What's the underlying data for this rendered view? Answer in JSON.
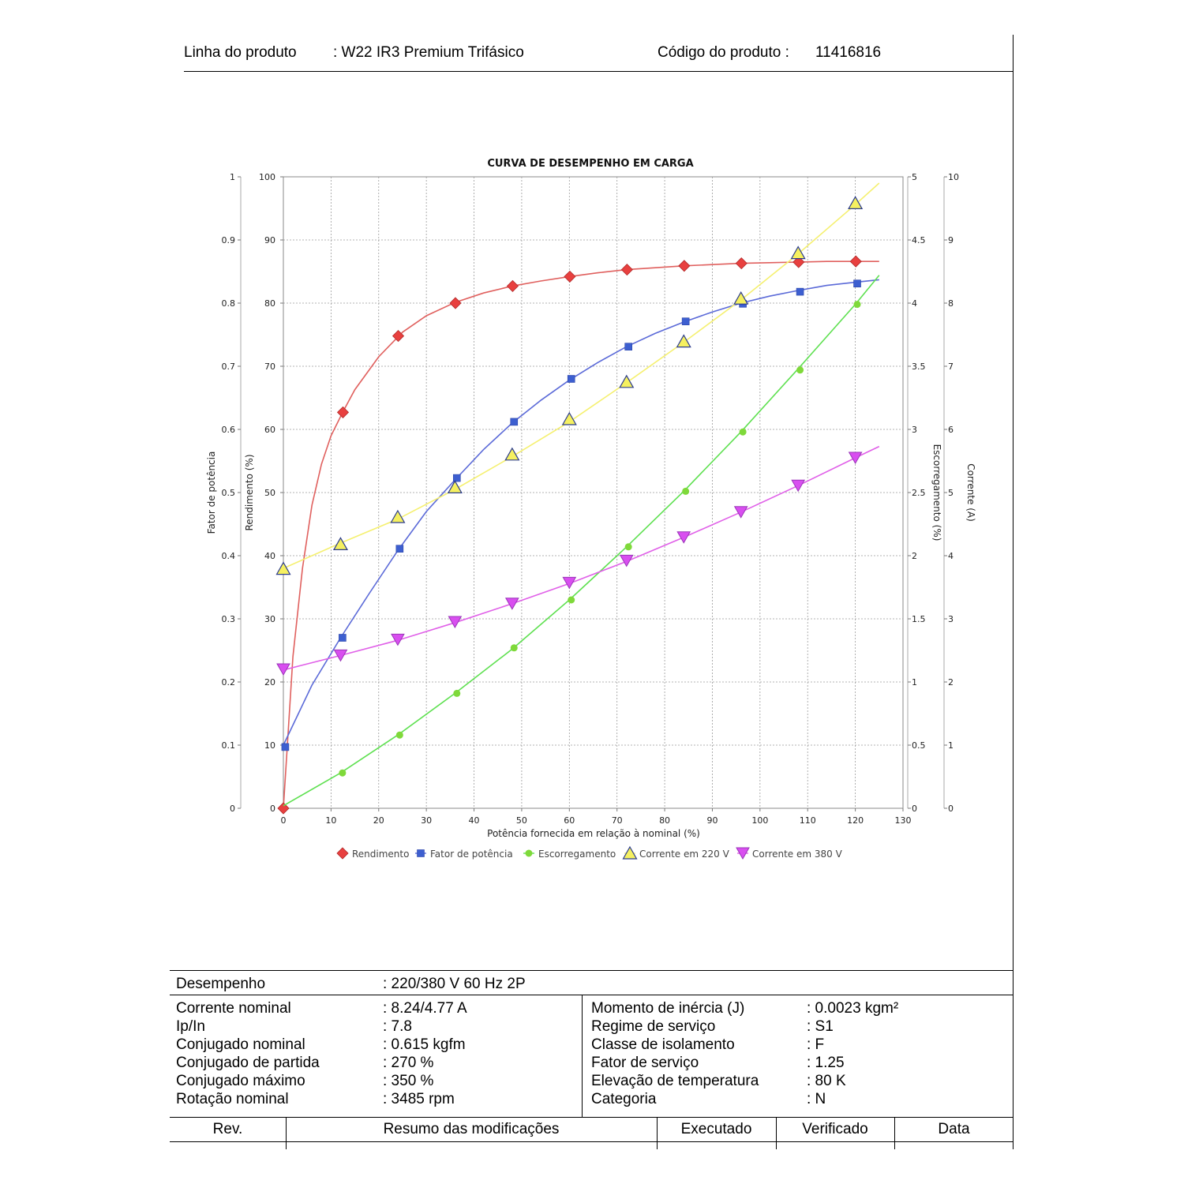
{
  "header": {
    "linha_label": "Linha do produto",
    "linha_value": ": W22 IR3 Premium Trifásico",
    "codigo_label": "Código do produto :",
    "codigo_value": "11416816"
  },
  "chart_data": {
    "type": "line",
    "title": "CURVA DE DESEMPENHO EM CARGA",
    "xlabel": "Potência fornecida em relação à nominal (%)",
    "xlim": [
      0,
      130
    ],
    "x_ticks": [
      0,
      10,
      20,
      30,
      40,
      50,
      60,
      70,
      80,
      90,
      100,
      110,
      120,
      130
    ],
    "grid": true,
    "legend_position": "bottom",
    "axes": [
      {
        "id": "pf",
        "label": "Fator de potência",
        "side": "left-outer",
        "range": [
          0,
          1
        ],
        "ticks": [
          "0",
          "0.1",
          "0.2",
          "0.3",
          "0.4",
          "0.5",
          "0.6",
          "0.7",
          "0.8",
          "0.9",
          "1"
        ]
      },
      {
        "id": "eff",
        "label": "Rendimento (%)",
        "side": "left-inner",
        "range": [
          0,
          100
        ],
        "ticks": [
          "0",
          "10",
          "20",
          "30",
          "40",
          "50",
          "60",
          "70",
          "80",
          "90",
          "100"
        ]
      },
      {
        "id": "slip",
        "label": "Escorregamento (%)",
        "side": "right-inner",
        "range": [
          0,
          5
        ],
        "ticks": [
          "0",
          "0.5",
          "1",
          "1.5",
          "2",
          "2.5",
          "3",
          "3.5",
          "4",
          "4.5",
          "5"
        ]
      },
      {
        "id": "cur",
        "label": "Corrente (A)",
        "side": "right-outer",
        "range": [
          0,
          10
        ],
        "ticks": [
          "0",
          "1",
          "2",
          "3",
          "4",
          "5",
          "6",
          "7",
          "8",
          "9",
          "10"
        ]
      }
    ],
    "series": [
      {
        "name": "Rendimento",
        "axis": "eff",
        "color": "#e8403f",
        "line_color": "#e0605e",
        "marker": "diamond",
        "points": [
          [
            0,
            0
          ],
          [
            12.5,
            62.7
          ],
          [
            24.1,
            74.8
          ],
          [
            36.1,
            80.0
          ],
          [
            48.1,
            82.7
          ],
          [
            60.1,
            84.2
          ],
          [
            72.1,
            85.3
          ],
          [
            84.1,
            85.9
          ],
          [
            96.1,
            86.3
          ],
          [
            108.1,
            86.5
          ],
          [
            120.1,
            86.6
          ]
        ],
        "curve": [
          [
            0,
            0
          ],
          [
            2,
            24
          ],
          [
            4,
            38
          ],
          [
            6,
            48
          ],
          [
            8,
            54.5
          ],
          [
            10,
            59
          ],
          [
            12.5,
            62.8
          ],
          [
            15,
            66.3
          ],
          [
            20,
            71.5
          ],
          [
            25,
            75.4
          ],
          [
            30,
            78
          ],
          [
            36,
            80.1
          ],
          [
            42,
            81.6
          ],
          [
            48,
            82.7
          ],
          [
            54,
            83.5
          ],
          [
            60,
            84.2
          ],
          [
            66,
            84.8
          ],
          [
            72,
            85.3
          ],
          [
            78,
            85.6
          ],
          [
            84,
            85.9
          ],
          [
            90,
            86.1
          ],
          [
            96,
            86.3
          ],
          [
            102,
            86.4
          ],
          [
            108,
            86.5
          ],
          [
            114,
            86.6
          ],
          [
            120,
            86.6
          ],
          [
            125,
            86.6
          ]
        ]
      },
      {
        "name": "Fator de potência",
        "axis": "pf",
        "color": "#3d5fd0",
        "line_color": "#5b6ad8",
        "marker": "square",
        "points": [
          [
            0.4,
            0.097
          ],
          [
            12.4,
            0.27
          ],
          [
            24.4,
            0.411
          ],
          [
            36.4,
            0.523
          ],
          [
            48.4,
            0.612
          ],
          [
            60.4,
            0.68
          ],
          [
            72.4,
            0.731
          ],
          [
            84.4,
            0.771
          ],
          [
            96.4,
            0.799
          ],
          [
            108.4,
            0.818
          ],
          [
            120.4,
            0.831
          ]
        ],
        "curve": [
          [
            0,
            0.1
          ],
          [
            6,
            0.195
          ],
          [
            12,
            0.27
          ],
          [
            18,
            0.34
          ],
          [
            24,
            0.408
          ],
          [
            30,
            0.47
          ],
          [
            36,
            0.52
          ],
          [
            42,
            0.568
          ],
          [
            48,
            0.61
          ],
          [
            54,
            0.646
          ],
          [
            60,
            0.678
          ],
          [
            66,
            0.706
          ],
          [
            72,
            0.731
          ],
          [
            78,
            0.752
          ],
          [
            84,
            0.77
          ],
          [
            90,
            0.786
          ],
          [
            96,
            0.8
          ],
          [
            102,
            0.811
          ],
          [
            108,
            0.82
          ],
          [
            114,
            0.828
          ],
          [
            120,
            0.833
          ],
          [
            125,
            0.837
          ]
        ]
      },
      {
        "name": "Escorregamento",
        "axis": "slip",
        "color": "#7fd93a",
        "line_color": "#5ee050",
        "marker": "circle",
        "points": [
          [
            12.4,
            0.28
          ],
          [
            24.4,
            0.58
          ],
          [
            36.4,
            0.91
          ],
          [
            48.4,
            1.27
          ],
          [
            60.4,
            1.65
          ],
          [
            72.4,
            2.07
          ],
          [
            84.4,
            2.51
          ],
          [
            96.4,
            2.98
          ],
          [
            108.4,
            3.47
          ],
          [
            120.4,
            3.99
          ]
        ],
        "curve": [
          [
            0,
            0.02
          ],
          [
            12,
            0.28
          ],
          [
            24,
            0.58
          ],
          [
            36,
            0.91
          ],
          [
            48,
            1.26
          ],
          [
            60,
            1.65
          ],
          [
            72,
            2.07
          ],
          [
            84,
            2.51
          ],
          [
            96,
            2.98
          ],
          [
            108,
            3.48
          ],
          [
            120,
            3.99
          ],
          [
            125,
            4.22
          ]
        ]
      },
      {
        "name": "Corrente em 220 V",
        "axis": "cur",
        "color": "#f5f060",
        "line_color": "#f5f070",
        "marker": "triangle-up",
        "points": [
          [
            0,
            3.78
          ],
          [
            12,
            4.17
          ],
          [
            24,
            4.6
          ],
          [
            36,
            5.07
          ],
          [
            48,
            5.59
          ],
          [
            60,
            6.15
          ],
          [
            72,
            6.74
          ],
          [
            84,
            7.38
          ],
          [
            96,
            8.06
          ],
          [
            108,
            8.78
          ],
          [
            120,
            9.57
          ]
        ],
        "curve": [
          [
            0,
            3.8
          ],
          [
            12,
            4.2
          ],
          [
            24,
            4.58
          ],
          [
            36,
            5.05
          ],
          [
            48,
            5.57
          ],
          [
            60,
            6.12
          ],
          [
            72,
            6.74
          ],
          [
            84,
            7.38
          ],
          [
            96,
            8.05
          ],
          [
            108,
            8.78
          ],
          [
            120,
            9.56
          ],
          [
            125,
            9.9
          ]
        ]
      },
      {
        "name": "Corrente em 380 V",
        "axis": "cur",
        "color": "#d94ef0",
        "line_color": "#e060e8",
        "marker": "triangle-down",
        "points": [
          [
            0,
            2.2
          ],
          [
            12,
            2.42
          ],
          [
            24,
            2.67
          ],
          [
            36,
            2.95
          ],
          [
            48,
            3.24
          ],
          [
            60,
            3.57
          ],
          [
            72,
            3.92
          ],
          [
            84,
            4.29
          ],
          [
            96,
            4.69
          ],
          [
            108,
            5.11
          ],
          [
            120,
            5.55
          ]
        ],
        "curve": [
          [
            0,
            2.19
          ],
          [
            12,
            2.42
          ],
          [
            24,
            2.66
          ],
          [
            36,
            2.94
          ],
          [
            48,
            3.24
          ],
          [
            60,
            3.56
          ],
          [
            72,
            3.91
          ],
          [
            84,
            4.29
          ],
          [
            96,
            4.69
          ],
          [
            108,
            5.11
          ],
          [
            120,
            5.55
          ],
          [
            125,
            5.73
          ]
        ]
      }
    ]
  },
  "performance": {
    "desempenho_label": "Desempenho",
    "desempenho_value": ": 220/380 V 60 Hz 2P",
    "left": [
      {
        "label": "Corrente nominal",
        "value": ": 8.24/4.77 A"
      },
      {
        "label": "Ip/In",
        "value": ": 7.8"
      },
      {
        "label": "Conjugado nominal",
        "value": ": 0.615 kgfm"
      },
      {
        "label": "Conjugado de partida",
        "value": ": 270 %"
      },
      {
        "label": "Conjugado máximo",
        "value": ": 350 %"
      },
      {
        "label": "Rotação nominal",
        "value": ": 3485 rpm"
      }
    ],
    "right": [
      {
        "label": "Momento de inércia (J)",
        "value": ": 0.0023 kgm²"
      },
      {
        "label": "Regime de serviço",
        "value": ": S1"
      },
      {
        "label": "Classe de isolamento",
        "value": ": F"
      },
      {
        "label": "Fator de serviço",
        "value": ": 1.25"
      },
      {
        "label": "Elevação de temperatura",
        "value": ": 80 K"
      },
      {
        "label": "Categoria",
        "value": ": N"
      }
    ]
  },
  "revision_table": {
    "headers": [
      "Rev.",
      "Resumo das modificações",
      "Executado",
      "Verificado",
      "Data"
    ]
  }
}
